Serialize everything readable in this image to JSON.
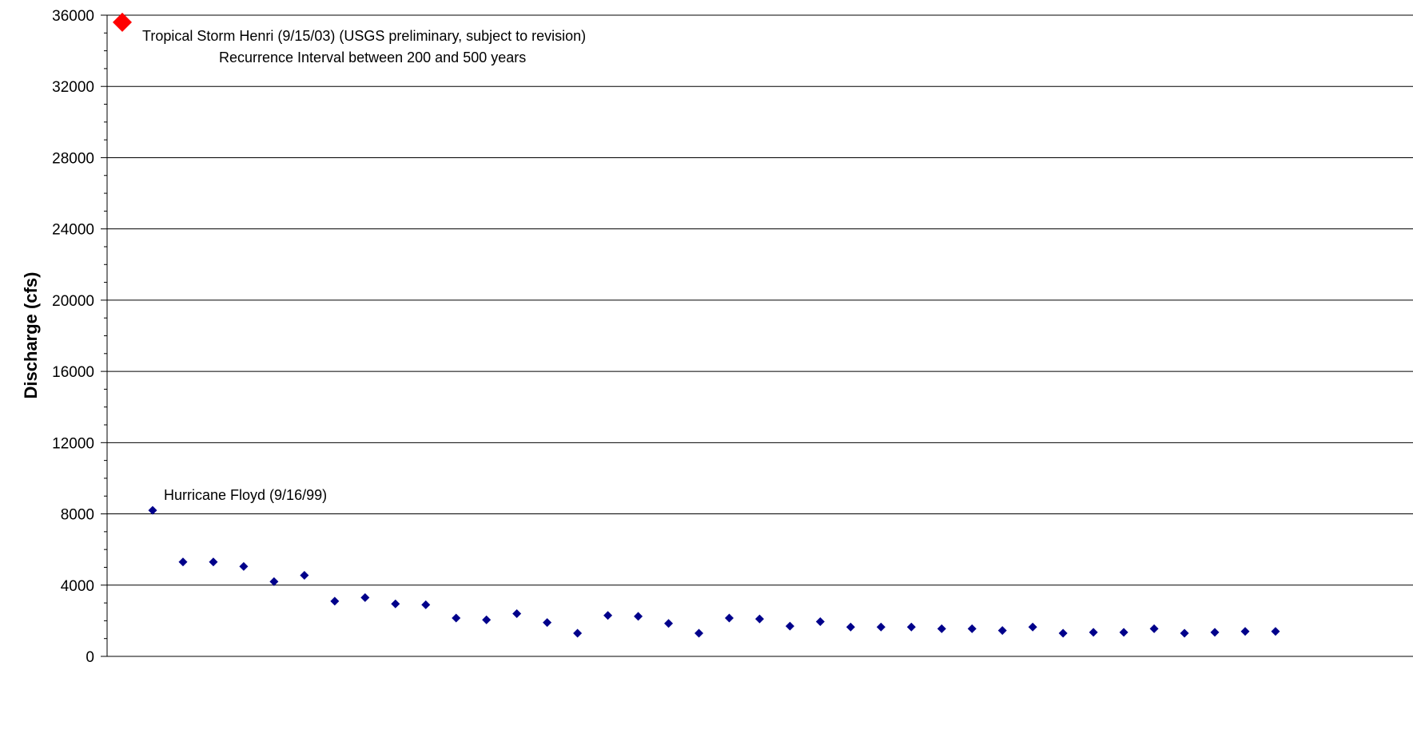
{
  "chart_data": {
    "type": "scatter",
    "title": "",
    "xlabel": "",
    "ylabel": "Discharge (cfs)",
    "ylim": [
      0,
      36000
    ],
    "yticks": [
      "0",
      "4000",
      "8000",
      "12000",
      "16000",
      "20000",
      "24000",
      "28000",
      "32000",
      "36000"
    ],
    "grid": true,
    "x_ticks_shown": false,
    "series": [
      {
        "color": "#00008B",
        "marker": "diamond",
        "x": [
          1,
          2,
          3,
          4,
          5,
          6,
          7,
          8,
          9,
          10,
          11,
          12,
          13,
          14,
          15,
          16,
          17,
          18,
          19,
          20,
          21,
          22,
          23,
          24,
          25,
          26,
          27,
          28,
          29,
          30,
          31,
          32,
          33,
          34,
          35,
          36,
          37,
          38
        ],
        "values": [
          8200,
          5300,
          5300,
          5050,
          4200,
          4550,
          3100,
          3300,
          2950,
          2900,
          2150,
          2050,
          2400,
          1900,
          1300,
          2300,
          2250,
          1850,
          1300,
          2150,
          2100,
          1700,
          1950,
          1650,
          1650,
          1650,
          1550,
          1550,
          1450,
          1650,
          1300,
          1350,
          1350,
          1550,
          1300,
          1350,
          1400,
          1400
        ]
      },
      {
        "color": "#FF0000",
        "marker": "diamond-large",
        "x": [
          0
        ],
        "values": [
          35600
        ]
      }
    ],
    "annotations": [
      {
        "text": "Tropical Storm Henri (9/15/03) (USGS preliminary, subject to revision)"
      },
      {
        "text": "Recurrence Interval between 200 and 500 years"
      },
      {
        "text": "Hurricane Floyd (9/16/99)"
      }
    ]
  }
}
